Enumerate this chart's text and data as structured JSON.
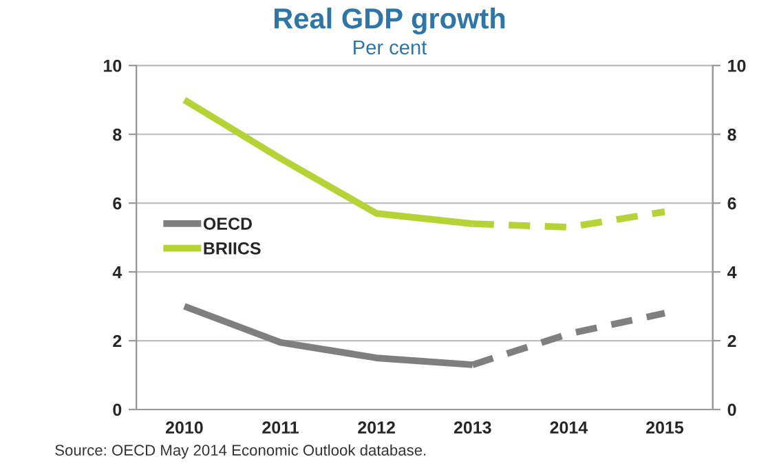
{
  "chart_data": {
    "type": "line",
    "title": "Real GDP growth",
    "subtitle": "Per cent",
    "categories": [
      "2010",
      "2011",
      "2012",
      "2013",
      "2014",
      "2015"
    ],
    "series": [
      {
        "name": "OECD",
        "color": "#7f7f7f",
        "values": [
          3.0,
          1.95,
          1.5,
          1.3,
          null,
          null
        ],
        "line_style": "solid"
      },
      {
        "name": "BRIICS",
        "color": "#b5d334",
        "values": [
          9.0,
          7.3,
          5.7,
          5.4,
          null,
          null
        ],
        "line_style": "solid"
      },
      {
        "color": "#7f7f7f",
        "values": [
          null,
          null,
          null,
          1.3,
          2.2,
          2.8
        ],
        "line_style": "dashed"
      },
      {
        "color": "#b5d334",
        "values": [
          null,
          null,
          null,
          5.4,
          5.3,
          5.75
        ],
        "line_style": "dashed"
      }
    ],
    "ylim": [
      0,
      10
    ],
    "yticks": [
      0,
      2,
      4,
      6,
      8,
      10
    ],
    "y2lim": [
      0,
      10
    ],
    "y2ticks": [
      0,
      2,
      4,
      6,
      8,
      10
    ],
    "grid": "y",
    "legend": "left",
    "marker": "none",
    "annotations": [
      "Source: OECD May 2014 Economic Outlook database."
    ]
  }
}
